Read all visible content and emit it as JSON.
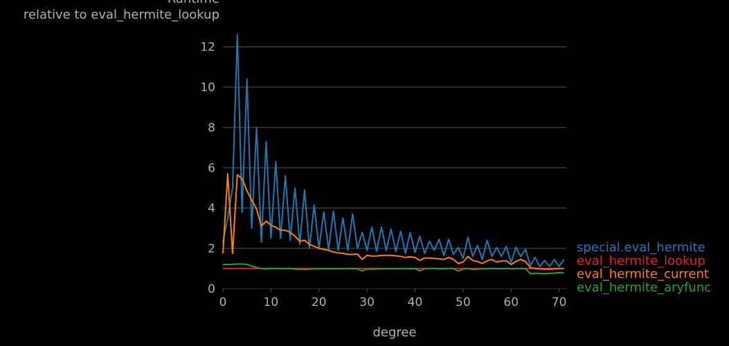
{
  "chart_data": {
    "type": "line",
    "title": "",
    "ylabel_lines": [
      "Runtime",
      "relative to eval_hermite_lookup"
    ],
    "xlabel": "degree",
    "xlim": [
      0,
      71.5
    ],
    "ylim": [
      0,
      12.95
    ],
    "xticks": [
      0,
      10,
      20,
      30,
      40,
      50,
      60,
      70
    ],
    "yticks": [
      0,
      2,
      4,
      6,
      8,
      10,
      12
    ],
    "grid": "horizontal",
    "legend_placement": "right",
    "x": [
      0,
      1,
      2,
      3,
      4,
      5,
      6,
      7,
      8,
      9,
      10,
      11,
      12,
      13,
      14,
      15,
      16,
      17,
      18,
      19,
      20,
      21,
      22,
      23,
      24,
      25,
      26,
      27,
      28,
      29,
      30,
      31,
      32,
      33,
      34,
      35,
      36,
      37,
      38,
      39,
      40,
      41,
      42,
      43,
      44,
      45,
      46,
      47,
      48,
      49,
      50,
      51,
      52,
      53,
      54,
      55,
      56,
      57,
      58,
      59,
      60,
      61,
      62,
      63,
      64,
      65,
      66,
      67,
      68,
      69,
      70,
      71
    ],
    "series": [
      {
        "name": "special.eval_hermite",
        "color": "#1f77b4",
        "values": [
          2.3,
          3.5,
          5.0,
          12.6,
          3.8,
          10.4,
          3.0,
          8.0,
          2.3,
          7.3,
          2.5,
          6.3,
          2.5,
          5.6,
          2.4,
          5.0,
          2.2,
          4.9,
          2.0,
          4.15,
          2.0,
          3.8,
          1.95,
          3.85,
          1.9,
          3.5,
          1.9,
          3.7,
          2.0,
          2.8,
          1.9,
          3.05,
          1.85,
          3.05,
          1.9,
          2.95,
          1.85,
          2.85,
          1.75,
          2.8,
          1.8,
          2.6,
          1.75,
          2.35,
          1.9,
          2.45,
          1.65,
          2.45,
          1.7,
          2.05,
          1.5,
          2.55,
          1.6,
          2.15,
          1.45,
          2.4,
          1.6,
          2.05,
          1.6,
          2.1,
          1.3,
          2.05,
          1.6,
          1.95,
          1.15,
          1.55,
          1.1,
          1.4,
          1.1,
          1.45,
          1.1,
          1.45
        ]
      },
      {
        "name": "eval_hermite_lookup",
        "color": "#d62728",
        "values": [
          1,
          1,
          1,
          1,
          1,
          1,
          1,
          1,
          1,
          1,
          1,
          1,
          1,
          1,
          1,
          1,
          1,
          1,
          1,
          1,
          1,
          1,
          1,
          1,
          1,
          1,
          1,
          1,
          1,
          1,
          1,
          1,
          1,
          1,
          1,
          1,
          1,
          1,
          1,
          1,
          1,
          1,
          1,
          1,
          1,
          1,
          1,
          1,
          1,
          1,
          1,
          1,
          1,
          1,
          1,
          1,
          1,
          1,
          1,
          1,
          1,
          1,
          1,
          1,
          1,
          1,
          1,
          1,
          1,
          1,
          1,
          1
        ]
      },
      {
        "name": "eval_hermite_current",
        "color": "#ff7f0e",
        "values": [
          1.75,
          5.7,
          1.75,
          5.65,
          5.45,
          4.85,
          4.4,
          3.95,
          3.1,
          3.35,
          3.15,
          3.05,
          2.9,
          2.9,
          2.8,
          2.6,
          2.35,
          2.4,
          2.2,
          2.1,
          2.0,
          1.95,
          1.9,
          1.82,
          1.77,
          1.75,
          1.7,
          1.7,
          1.72,
          1.45,
          1.65,
          1.62,
          1.62,
          1.65,
          1.65,
          1.65,
          1.63,
          1.6,
          1.55,
          1.58,
          1.55,
          1.4,
          1.52,
          1.52,
          1.5,
          1.48,
          1.45,
          1.55,
          1.45,
          1.25,
          1.32,
          1.6,
          1.4,
          1.35,
          1.25,
          1.38,
          1.45,
          1.32,
          1.38,
          1.38,
          1.2,
          1.35,
          1.45,
          1.35,
          1.05,
          1.0,
          0.98,
          0.97,
          0.97,
          0.98,
          1.0,
          1.0
        ]
      },
      {
        "name": "eval_hermite_aryfunc",
        "color": "#2ca02c",
        "values": [
          1.2,
          1.2,
          1.21,
          1.22,
          1.22,
          1.2,
          1.12,
          1.05,
          1.0,
          0.98,
          1.0,
          1.0,
          0.99,
          1.0,
          1.0,
          0.97,
          0.97,
          0.96,
          0.97,
          0.98,
          0.98,
          0.99,
          0.98,
          0.99,
          0.98,
          0.99,
          0.99,
          1.0,
          0.98,
          0.88,
          0.98,
          0.97,
          0.98,
          0.98,
          0.99,
          0.99,
          0.98,
          1.0,
          0.99,
          0.98,
          1.0,
          0.88,
          0.99,
          1.0,
          1.01,
          0.98,
          0.98,
          1.0,
          1.0,
          0.87,
          0.97,
          1.0,
          0.96,
          0.97,
          0.98,
          0.99,
          1.0,
          0.99,
          0.99,
          1.0,
          0.98,
          0.99,
          1.0,
          0.99,
          0.75,
          0.76,
          0.76,
          0.74,
          0.76,
          0.77,
          0.79,
          0.78
        ]
      }
    ]
  }
}
